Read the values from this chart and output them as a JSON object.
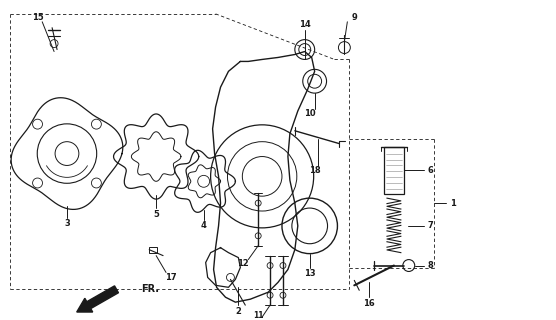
{
  "bg_color": "#ffffff",
  "figsize": [
    5.56,
    3.2
  ],
  "dpi": 100,
  "line_color": "#1a1a1a",
  "gray_fill": "#d8d8d8",
  "light_gray": "#eeeeee"
}
